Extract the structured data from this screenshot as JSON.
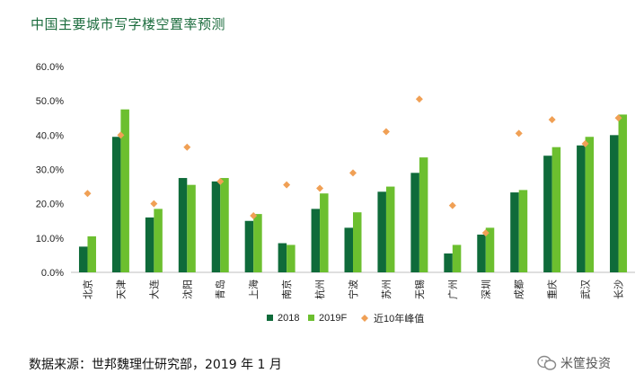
{
  "title": "中国主要城市写字楼空置率预测",
  "source": "数据来源：世邦魏理仕研究部，2019 年 1 月",
  "watermark": "米筐投资",
  "colors": {
    "s2018": "#0f6b3a",
    "s2019": "#6cbf2f",
    "peak": "#f0a055",
    "title": "#1a6b3c",
    "axis": "#bfbfbf"
  },
  "chart_data": {
    "type": "bar",
    "categories": [
      "北京",
      "天津",
      "大连",
      "沈阳",
      "青岛",
      "上海",
      "南京",
      "杭州",
      "宁波",
      "苏州",
      "无锡",
      "广州",
      "深圳",
      "成都",
      "重庆",
      "武汉",
      "长沙"
    ],
    "series": [
      {
        "name": "2018",
        "kind": "bar",
        "values": [
          7.5,
          39.5,
          16.0,
          27.5,
          26.5,
          15.0,
          8.5,
          18.5,
          13.0,
          23.5,
          29.0,
          5.5,
          11.0,
          23.3,
          34.0,
          37.0,
          40.0
        ]
      },
      {
        "name": "2019F",
        "kind": "bar",
        "values": [
          10.5,
          47.5,
          18.5,
          25.5,
          27.5,
          17.0,
          8.0,
          23.0,
          17.5,
          25.0,
          33.5,
          8.0,
          13.0,
          24.0,
          36.5,
          39.5,
          46.0
        ]
      },
      {
        "name": "近10年峰值",
        "kind": "marker",
        "values": [
          23.0,
          40.0,
          20.0,
          36.5,
          26.5,
          16.5,
          25.5,
          24.5,
          29.0,
          41.0,
          50.5,
          19.5,
          11.5,
          40.5,
          44.5,
          37.5,
          45.0
        ]
      }
    ],
    "ylim": [
      0,
      60
    ],
    "yticks": [
      "0.0%",
      "10.0%",
      "20.0%",
      "30.0%",
      "40.0%",
      "50.0%",
      "60.0%"
    ],
    "legend_position": "bottom",
    "grid": false
  }
}
